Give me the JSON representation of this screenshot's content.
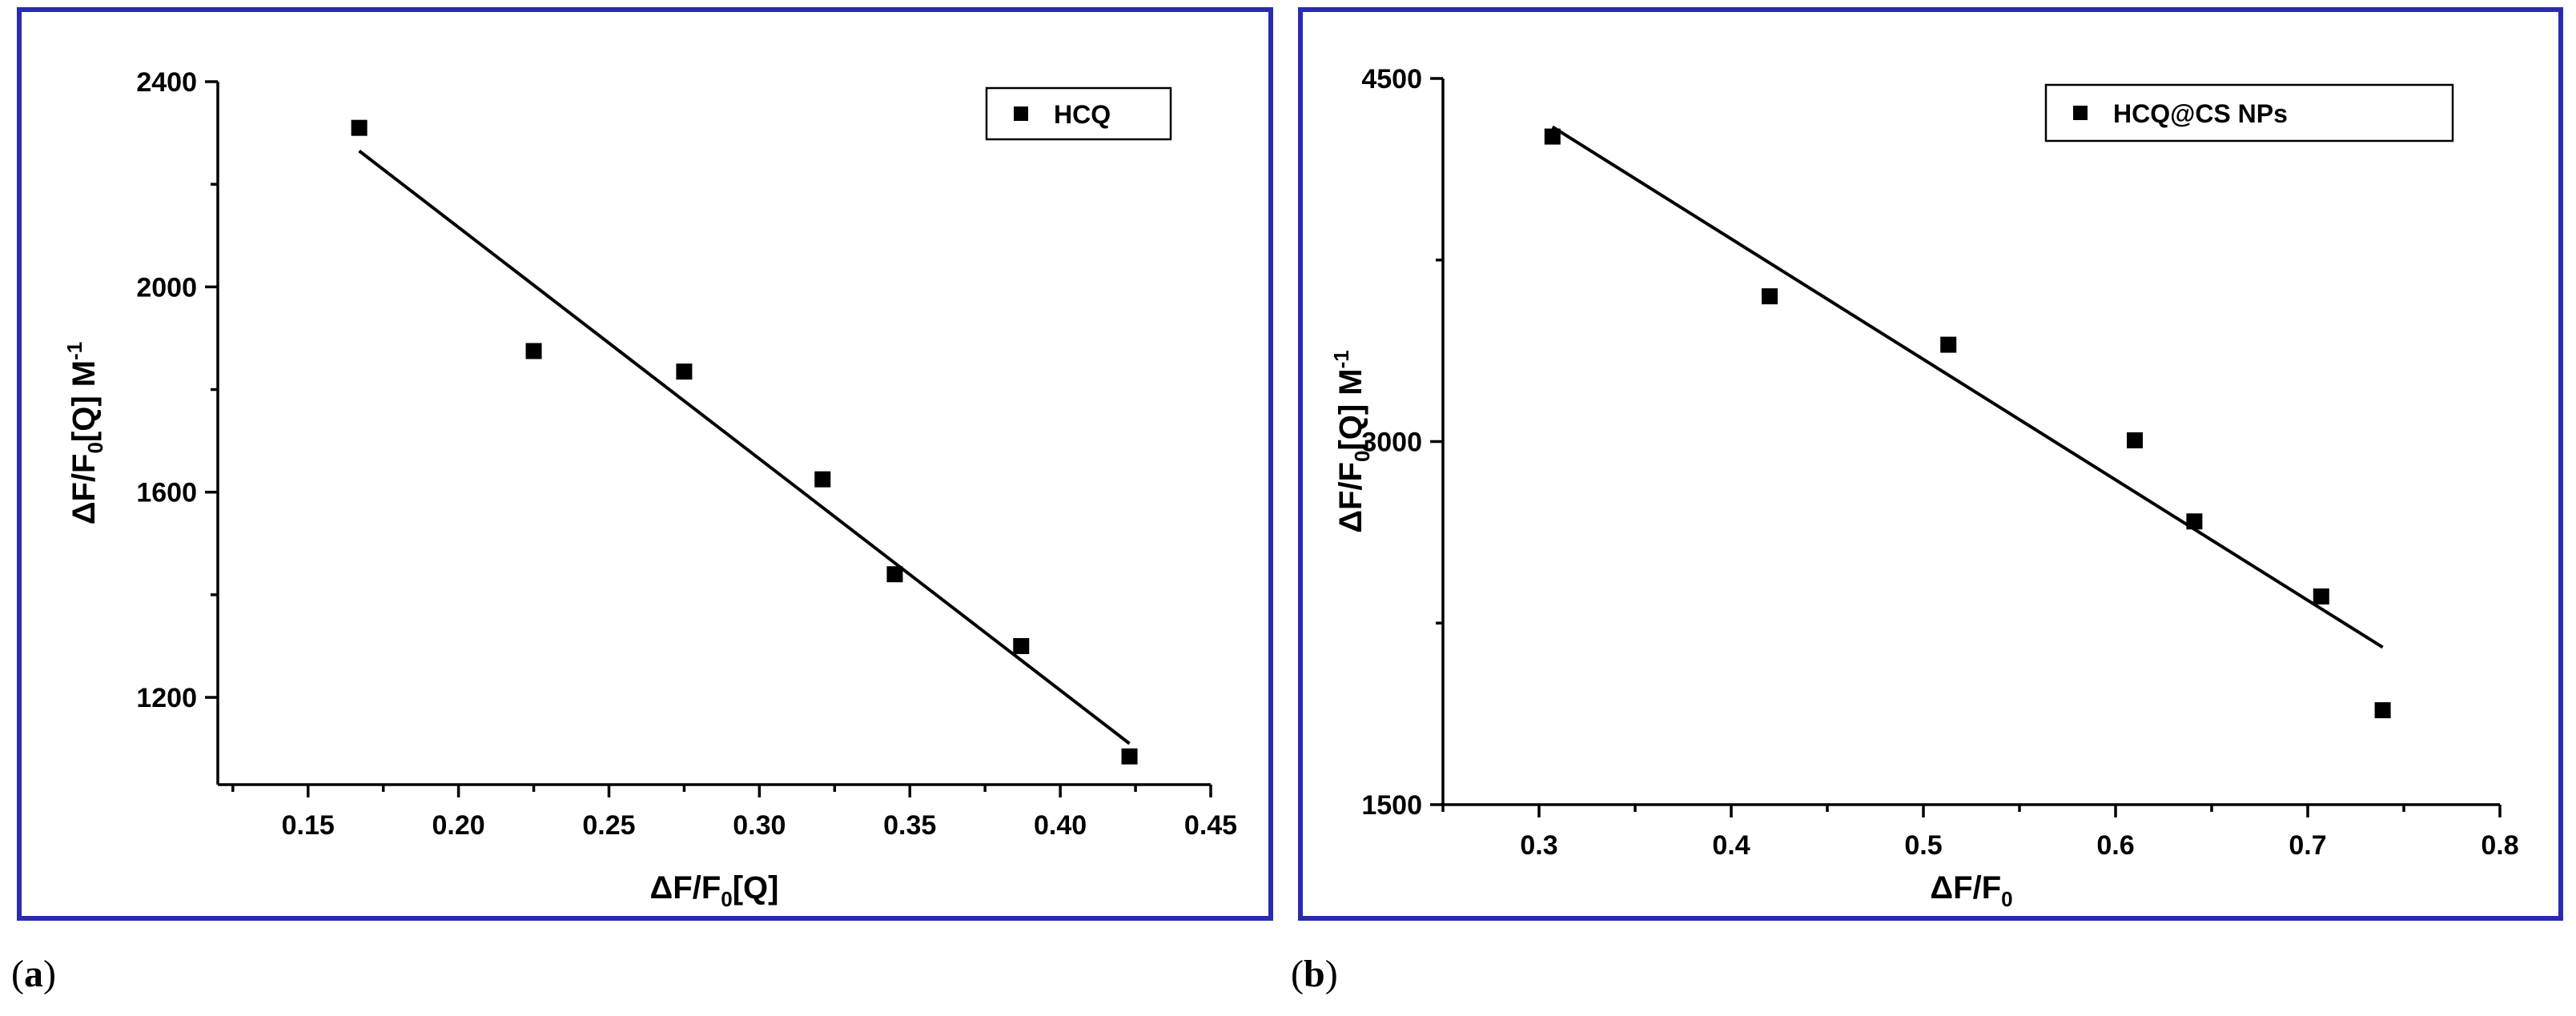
{
  "chart_data": [
    {
      "type": "scatter",
      "panel_label": "a",
      "title": "",
      "xlabel": {
        "main": "ΔF/F",
        "sub": "0",
        "tail": "[Q]"
      },
      "ylabel": {
        "main": "ΔF/F",
        "sub": "0",
        "tail": "[Q] M",
        "sup": "-1"
      },
      "xlim": [
        0.12,
        0.45
      ],
      "ylim": [
        1030,
        2400
      ],
      "xticks": [
        0.15,
        0.2,
        0.25,
        0.3,
        0.35,
        0.4,
        0.45
      ],
      "xtick_labels": [
        "0.15",
        "0.20",
        "0.25",
        "0.30",
        "0.35",
        "0.40",
        "0.45"
      ],
      "yticks": [
        1200,
        1600,
        2000,
        2400
      ],
      "ytick_labels": [
        "1200",
        "1600",
        "2000",
        "2400"
      ],
      "series": [
        {
          "name": "HCQ",
          "x": [
            0.167,
            0.225,
            0.275,
            0.321,
            0.345,
            0.387,
            0.423
          ],
          "y": [
            2310,
            1875,
            1835,
            1625,
            1440,
            1300,
            1085
          ]
        }
      ],
      "fit_line": {
        "x": [
          0.167,
          0.423
        ],
        "y": [
          2265,
          1110
        ]
      },
      "legend": {
        "position": "top-right"
      },
      "grid": false
    },
    {
      "type": "scatter",
      "panel_label": "b",
      "title": "",
      "xlabel": {
        "main": "ΔF/F",
        "sub": "0",
        "tail": ""
      },
      "ylabel": {
        "main": "ΔF/F",
        "sub": "0",
        "tail": "[Q] M",
        "sup": "-1"
      },
      "xlim": [
        0.25,
        0.8
      ],
      "ylim": [
        1500,
        4500
      ],
      "xticks": [
        0.3,
        0.4,
        0.5,
        0.6,
        0.7,
        0.8
      ],
      "xtick_labels": [
        "0.3",
        "0.4",
        "0.5",
        "0.6",
        "0.7",
        "0.8"
      ],
      "yticks": [
        1500,
        3000,
        4500
      ],
      "ytick_labels": [
        "1500",
        "3000",
        "4500"
      ],
      "series": [
        {
          "name": "HCQ@CS NPs",
          "x": [
            0.307,
            0.42,
            0.513,
            0.61,
            0.641,
            0.707,
            0.739
          ],
          "y": [
            4260,
            3600,
            3400,
            3005,
            2670,
            2360,
            1890
          ]
        }
      ],
      "fit_line": {
        "x": [
          0.307,
          0.739
        ],
        "y": [
          4300,
          2150
        ]
      },
      "legend": {
        "position": "top-right"
      },
      "grid": false
    }
  ]
}
